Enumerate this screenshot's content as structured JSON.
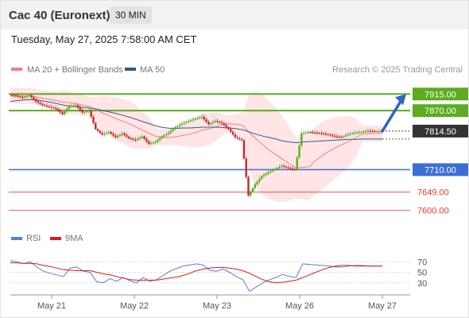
{
  "header": {
    "title": "Cac 40 (Euronext)",
    "timeframe": "30 MIN"
  },
  "datetime": "Tuesday, May 27, 2025 7:58:00 AM CET",
  "credit": "Research © 2025 Trading Central",
  "legend": {
    "bollinger": "MA 20 + Bollinger Bands",
    "ma50": "MA 50",
    "rsi": "RSI",
    "rsi_ma": "9MA"
  },
  "colors": {
    "green": "#5cac1f",
    "blue": "#3b6fd8",
    "red": "#e53935",
    "candle_up": "#5cac1f",
    "candle_down": "#c62828",
    "ma20": "#f08080",
    "ma50": "#2f5b8a",
    "band": "#ffe0e0",
    "rsi": "#5b7fd0",
    "rsi_ma": "#d81b1b",
    "dark": "#333333"
  },
  "chart_data": [
    {
      "type": "candlestick",
      "title": "Cac 40 (Euronext)",
      "timeframe": "30 MIN",
      "x_ticks": [
        "May 21",
        "May 22",
        "May 23",
        "May 26",
        "May 27"
      ],
      "price_range": [
        7575,
        7935
      ],
      "current_price": 7814.5,
      "levels": [
        {
          "value": 7915.0,
          "label": "7915.00",
          "kind": "resistance"
        },
        {
          "value": 7870.0,
          "label": "7870.00",
          "kind": "resistance"
        },
        {
          "value": 7710.0,
          "label": "7710.00",
          "kind": "pivot"
        },
        {
          "value": 7649.0,
          "label": "7649.00",
          "kind": "support"
        },
        {
          "value": 7600.0,
          "label": "7600.00",
          "kind": "support"
        }
      ],
      "forecast_arrow": {
        "from": 7814.5,
        "to": 7915.0
      },
      "close_path": [
        7912,
        7910,
        7905,
        7912,
        7895,
        7885,
        7880,
        7875,
        7860,
        7882,
        7885,
        7865,
        7870,
        7820,
        7805,
        7812,
        7798,
        7808,
        7795,
        7790,
        7800,
        7780,
        7785,
        7800,
        7810,
        7825,
        7835,
        7842,
        7848,
        7853,
        7833,
        7842,
        7836,
        7820,
        7798,
        7790,
        7640,
        7670,
        7692,
        7703,
        7712,
        7720,
        7714,
        7710,
        7808,
        7812,
        7810,
        7808,
        7805,
        7800,
        7798,
        7806,
        7810,
        7812,
        7815,
        7814,
        7814.5
      ],
      "ma50": [
        7895,
        7897,
        7899,
        7900,
        7899,
        7896,
        7893,
        7889,
        7885,
        7882,
        7880,
        7879,
        7877,
        7874,
        7870,
        7866,
        7862,
        7857,
        7852,
        7846,
        7840,
        7834,
        7828,
        7824,
        7822,
        7822,
        7823,
        7823,
        7824,
        7825,
        7825,
        7825,
        7824,
        7823,
        7821,
        7818,
        7812,
        7806,
        7801,
        7797,
        7793,
        7788,
        7785,
        7783,
        7785,
        7786,
        7787,
        7788,
        7789,
        7790,
        7791,
        7792,
        7792,
        7793,
        7793,
        7793,
        7793
      ]
    },
    {
      "type": "line",
      "title": "RSI",
      "y_ticks": [
        70,
        50,
        30
      ],
      "y_range": [
        10,
        90
      ],
      "series": [
        {
          "name": "RSI",
          "values": [
            72,
            70,
            66,
            70,
            60,
            52,
            48,
            45,
            42,
            58,
            60,
            52,
            50,
            32,
            30,
            38,
            33,
            40,
            34,
            30,
            40,
            33,
            36,
            44,
            52,
            57,
            62,
            64,
            66,
            64,
            54,
            52,
            56,
            50,
            42,
            36,
            14,
            22,
            30,
            36,
            40,
            46,
            42,
            40,
            66,
            65,
            64,
            63,
            62,
            60,
            60,
            62,
            63,
            63,
            62,
            62,
            62
          ]
        },
        {
          "name": "9MA",
          "values": [
            68,
            68,
            67,
            67,
            66,
            63,
            61,
            58,
            55,
            54,
            53,
            53,
            53,
            50,
            47,
            45,
            42,
            39,
            36,
            35,
            35,
            35,
            35,
            37,
            39,
            41,
            44,
            48,
            53,
            56,
            58,
            59,
            59,
            58,
            56,
            53,
            48,
            42,
            36,
            32,
            30,
            31,
            33,
            35,
            40,
            45,
            50,
            55,
            59,
            62,
            63,
            63,
            62,
            62,
            62,
            62,
            62
          ]
        }
      ]
    }
  ]
}
